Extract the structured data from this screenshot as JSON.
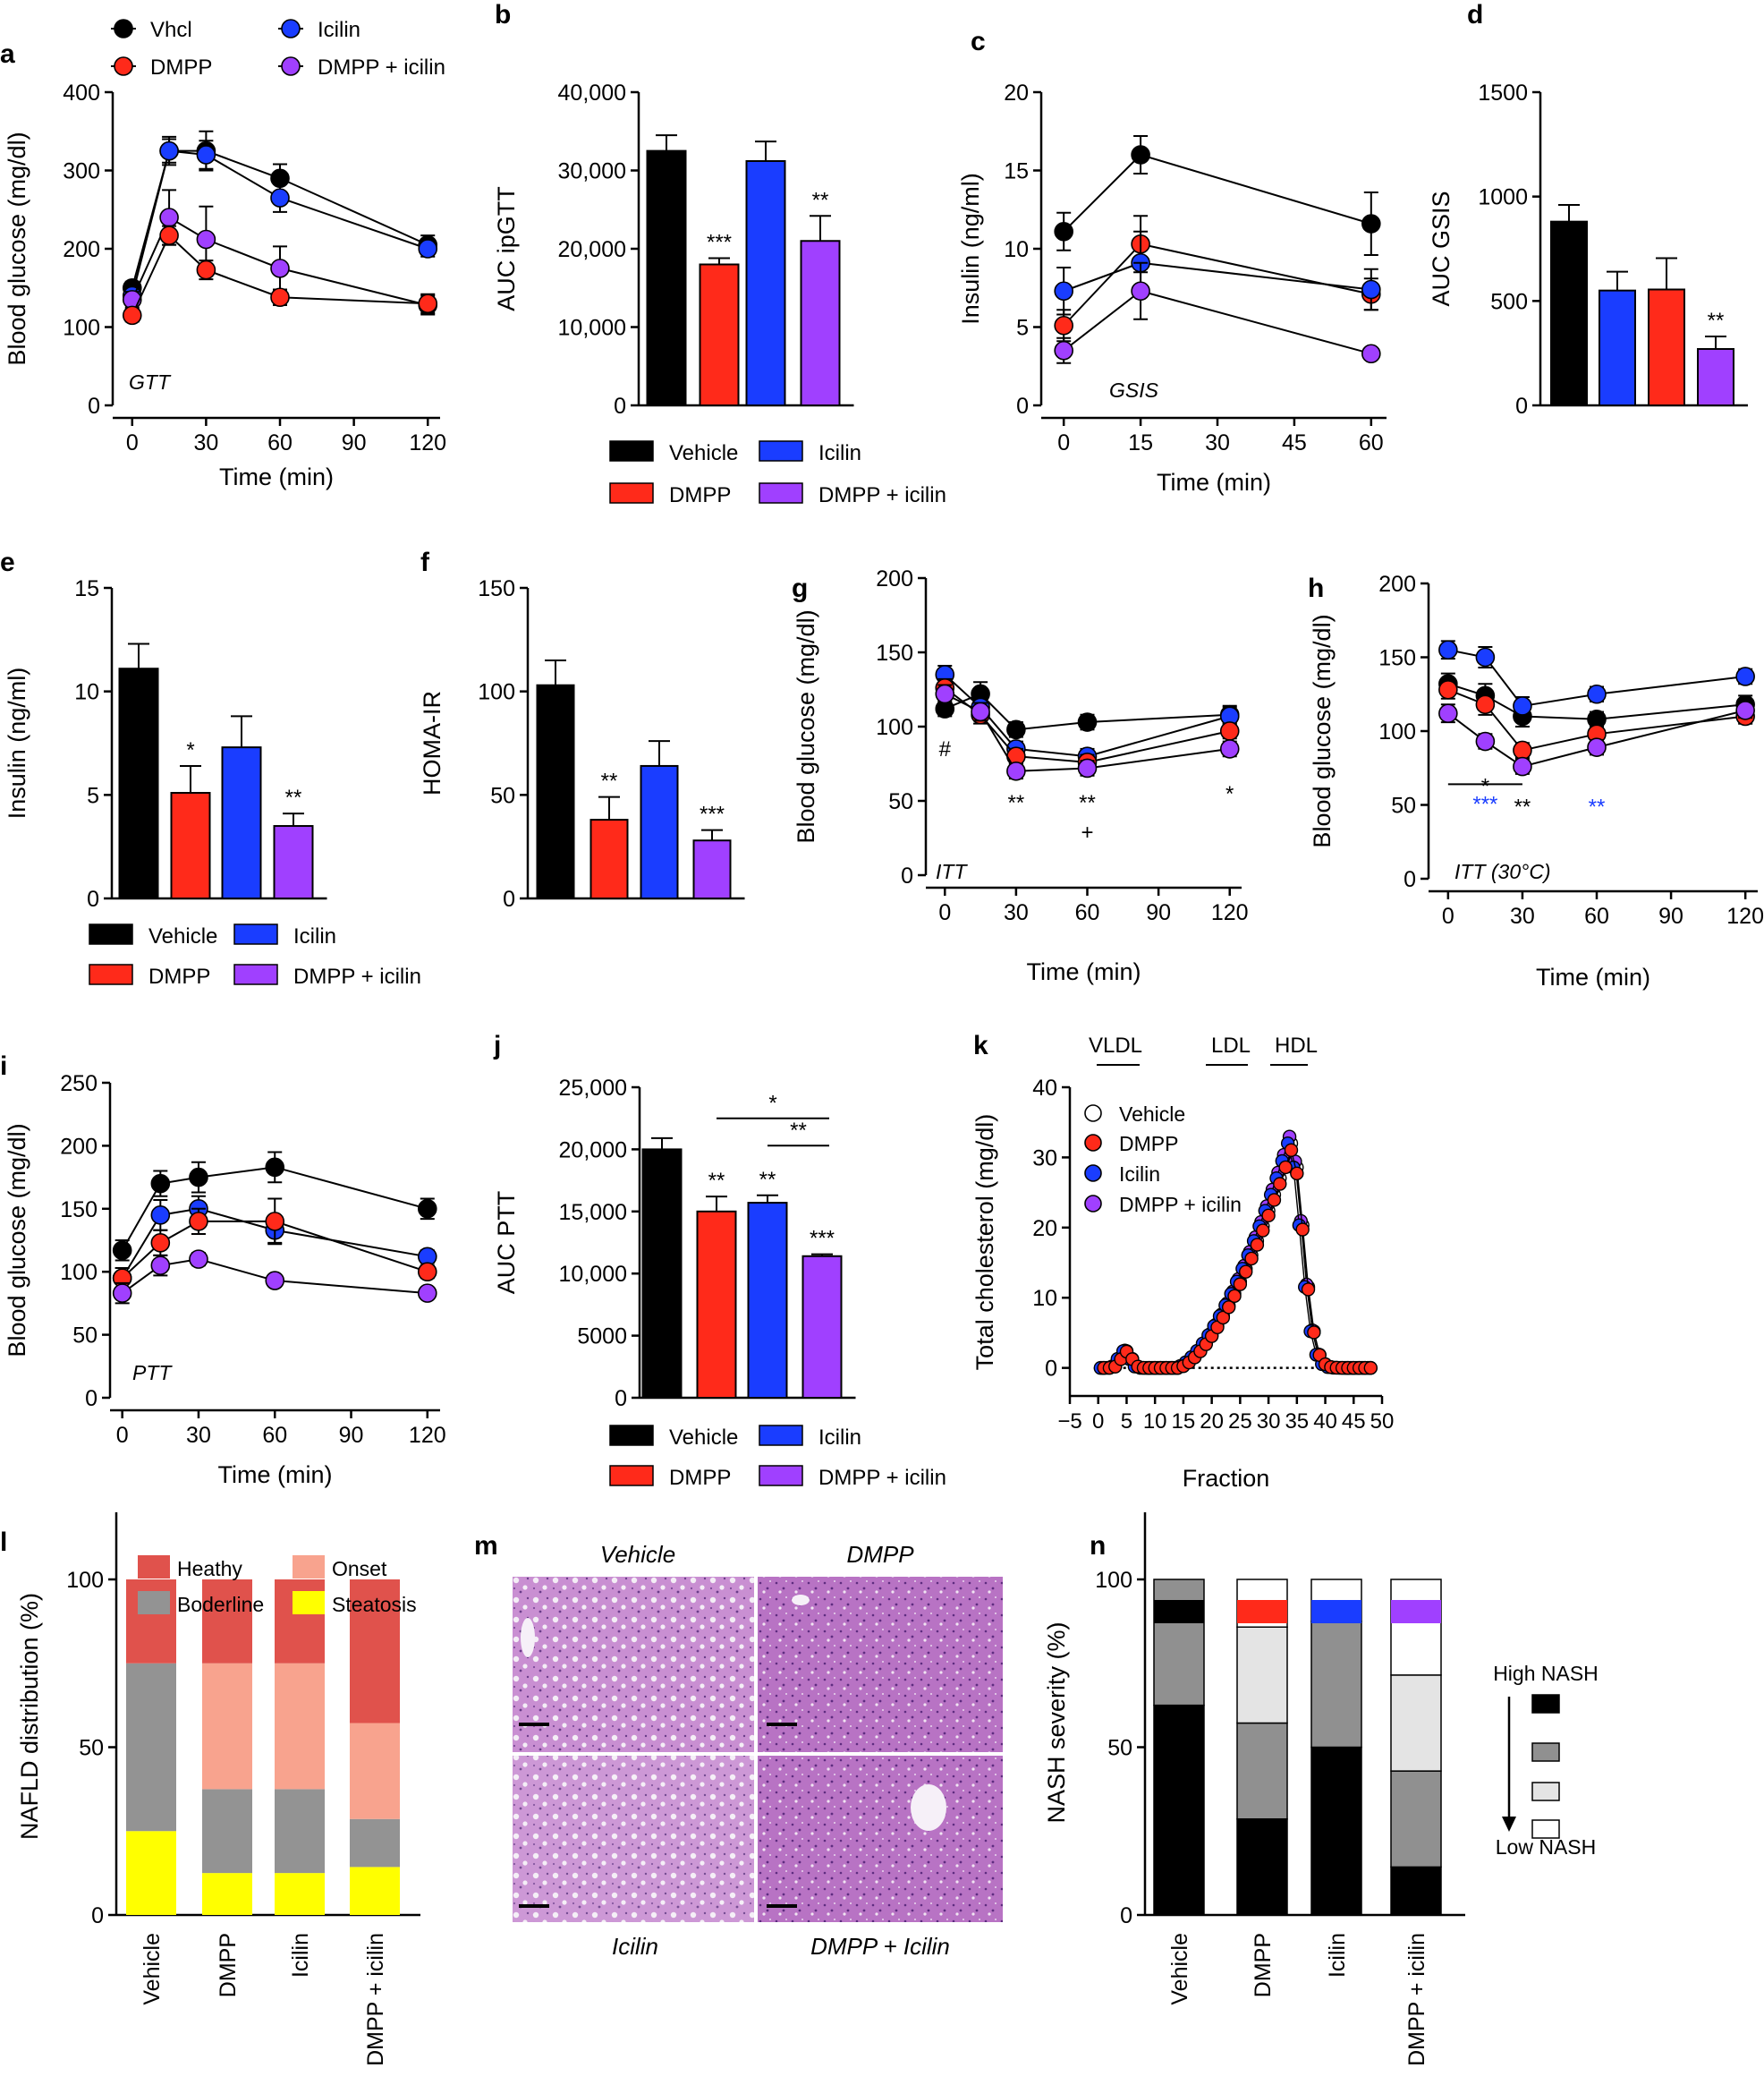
{
  "colors": {
    "vehicle": "#000000",
    "dmpp": "#ff2a1a",
    "icilin": "#1a3dff",
    "combo": "#a040ff",
    "grey": "#909090",
    "white": "#ffffff",
    "healthy": "#e0524c",
    "onset": "#f8a38e",
    "borderline": "#939393",
    "steatosis": "#ffff00",
    "blueStar": "#1a3dff",
    "lightgrey": "#e4e4e4"
  },
  "chart_data": [
    {
      "id": "a",
      "type": "line",
      "label": "a",
      "ylabel": "Blood glucose (mg/dl)",
      "xlabel": "Time (min)",
      "annotation": "GTT",
      "x": [
        0,
        15,
        30,
        60,
        120
      ],
      "xticks": [
        "0",
        "30",
        "60",
        "90",
        "120"
      ],
      "yticks": [
        "0",
        "100",
        "200",
        "300",
        "400"
      ],
      "ylim": [
        0,
        400
      ],
      "xlim": [
        -5,
        125
      ],
      "legend": [
        "Vhcl",
        "DMPP",
        "Icilin",
        "DMPP + icilin"
      ],
      "series": [
        {
          "name": "Vhcl",
          "color": "vehicle",
          "values": [
            150,
            325,
            325,
            290,
            205
          ],
          "err": [
            8,
            18,
            25,
            18,
            12
          ]
        },
        {
          "name": "Icilin",
          "color": "icilin",
          "values": [
            140,
            325,
            320,
            265,
            200
          ],
          "err": [
            8,
            15,
            18,
            18,
            10
          ]
        },
        {
          "name": "DMPP + icilin",
          "color": "combo",
          "values": [
            135,
            240,
            212,
            175,
            128
          ],
          "err": [
            10,
            35,
            42,
            28,
            12
          ]
        },
        {
          "name": "DMPP",
          "color": "dmpp",
          "values": [
            115,
            217,
            173,
            138,
            130
          ],
          "err": [
            8,
            12,
            12,
            10,
            12
          ]
        }
      ]
    },
    {
      "id": "b",
      "type": "bar",
      "label": "b",
      "ylabel": "AUC ipGTT",
      "categories": [
        "Vehicle",
        "DMPP",
        "Icilin",
        "DMPP + icilin"
      ],
      "values": [
        32500,
        18000,
        31200,
        21000
      ],
      "err": [
        2000,
        800,
        2500,
        3200
      ],
      "stars": [
        "",
        "***",
        "",
        "**"
      ],
      "ylim": [
        0,
        40000
      ],
      "yticks": [
        "0",
        "10,000",
        "20,000",
        "30,000",
        "40,000"
      ]
    },
    {
      "id": "c",
      "type": "line",
      "label": "c",
      "ylabel": "Insulin (ng/ml)",
      "xlabel": "Time (min)",
      "annotation": "GSIS",
      "x": [
        0,
        15,
        60
      ],
      "xticks": [
        "0",
        "15",
        "30",
        "45",
        "60"
      ],
      "yticks": [
        "0",
        "5",
        "10",
        "15",
        "20"
      ],
      "ylim": [
        0,
        20
      ],
      "xlim": [
        -3,
        63
      ],
      "series": [
        {
          "name": "Vehicle",
          "color": "vehicle",
          "values": [
            11.1,
            16.0,
            11.6
          ],
          "err": [
            1.2,
            1.2,
            2.0
          ]
        },
        {
          "name": "DMPP",
          "color": "dmpp",
          "values": [
            5.1,
            10.3,
            7.1
          ],
          "err": [
            1.0,
            1.8,
            1.0
          ]
        },
        {
          "name": "Icilin",
          "color": "icilin",
          "values": [
            7.3,
            9.1,
            7.4
          ],
          "err": [
            1.5,
            2.0,
            1.3
          ]
        },
        {
          "name": "DMPP + icilin",
          "color": "combo",
          "values": [
            3.5,
            7.3,
            3.3
          ],
          "err": [
            0.8,
            1.8,
            0.3
          ]
        }
      ]
    },
    {
      "id": "d",
      "type": "bar",
      "label": "d",
      "ylabel": "AUC GSIS",
      "categories": [
        "Vehicle",
        "Icilin",
        "DMPP",
        "DMPP + icilin"
      ],
      "values": [
        880,
        550,
        555,
        270
      ],
      "err": [
        80,
        90,
        150,
        60
      ],
      "stars": [
        "",
        "",
        "",
        "**"
      ],
      "ylim": [
        0,
        1500
      ],
      "yticks": [
        "0",
        "500",
        "1000",
        "1500"
      ]
    },
    {
      "id": "e",
      "type": "bar",
      "label": "e",
      "ylabel": "Insulin (ng/ml)",
      "categories": [
        "Vehicle",
        "DMPP",
        "Icilin",
        "DMPP + icilin"
      ],
      "values": [
        11.1,
        5.1,
        7.3,
        3.5
      ],
      "err": [
        1.2,
        1.3,
        1.5,
        0.6
      ],
      "stars": [
        "",
        "*",
        "",
        "**"
      ],
      "ylim": [
        0,
        15
      ],
      "yticks": [
        "0",
        "5",
        "10",
        "15"
      ]
    },
    {
      "id": "f",
      "type": "bar",
      "label": "f",
      "ylabel": "HOMA-IR",
      "categories": [
        "Vehicle",
        "DMPP",
        "Icilin",
        "DMPP + icilin"
      ],
      "values": [
        103,
        38,
        64,
        28
      ],
      "err": [
        12,
        11,
        12,
        5
      ],
      "stars": [
        "",
        "**",
        "",
        "***"
      ],
      "ylim": [
        0,
        150
      ],
      "yticks": [
        "0",
        "50",
        "100",
        "150"
      ]
    },
    {
      "id": "g",
      "type": "line",
      "label": "g",
      "ylabel": "Blood glucose (mg/dl)",
      "xlabel": "Time (min)",
      "annotation": "ITT",
      "x": [
        0,
        15,
        30,
        60,
        120
      ],
      "xticks": [
        "0",
        "30",
        "60",
        "90",
        "120"
      ],
      "yticks": [
        "0",
        "50",
        "100",
        "150",
        "200"
      ],
      "ylim": [
        0,
        200
      ],
      "xlim": [
        -5,
        125
      ],
      "series": [
        {
          "name": "Vehicle",
          "color": "vehicle",
          "values": [
            112,
            122,
            98,
            103,
            108
          ],
          "err": [
            5,
            8,
            5,
            5,
            6
          ]
        },
        {
          "name": "Icilin",
          "color": "icilin",
          "values": [
            135,
            113,
            85,
            80,
            107
          ],
          "err": [
            6,
            8,
            5,
            5,
            6
          ]
        },
        {
          "name": "DMPP",
          "color": "dmpp",
          "values": [
            126,
            108,
            80,
            76,
            97
          ],
          "err": [
            6,
            6,
            5,
            5,
            5
          ]
        },
        {
          "name": "DMPP + icilin",
          "color": "combo",
          "values": [
            122,
            110,
            70,
            72,
            85
          ],
          "err": [
            6,
            6,
            5,
            5,
            5
          ]
        }
      ],
      "marks": [
        {
          "x": 0,
          "y": 86,
          "t": "#"
        },
        {
          "x": 30,
          "y": 50,
          "t": "**"
        },
        {
          "x": 60,
          "y": 50,
          "t": "**"
        },
        {
          "x": 60,
          "y": 30,
          "t": "+"
        },
        {
          "x": 120,
          "y": 56,
          "t": "*"
        }
      ]
    },
    {
      "id": "h",
      "type": "line",
      "label": "h",
      "ylabel": "Blood glucose (mg/dl)",
      "xlabel": "Time (min)",
      "annotation": "ITT (30°C)",
      "x": [
        0,
        15,
        30,
        60,
        120
      ],
      "xticks": [
        "0",
        "30",
        "60",
        "90",
        "120"
      ],
      "yticks": [
        "0",
        "50",
        "100",
        "150",
        "200"
      ],
      "ylim": [
        0,
        200
      ],
      "xlim": [
        -5,
        125
      ],
      "series": [
        {
          "name": "Vehicle",
          "color": "vehicle",
          "values": [
            132,
            124,
            110,
            108,
            118
          ],
          "err": [
            7,
            8,
            7,
            5,
            6
          ]
        },
        {
          "name": "Icilin",
          "color": "icilin",
          "values": [
            155,
            150,
            117,
            125,
            137
          ],
          "err": [
            6,
            7,
            6,
            5,
            5
          ]
        },
        {
          "name": "DMPP",
          "color": "dmpp",
          "values": [
            128,
            118,
            87,
            98,
            110
          ],
          "err": [
            6,
            7,
            5,
            5,
            5
          ]
        },
        {
          "name": "DMPP + icilin",
          "color": "combo",
          "values": [
            112,
            93,
            76,
            89,
            114
          ],
          "err": [
            6,
            5,
            5,
            5,
            5
          ]
        }
      ],
      "marks": [
        {
          "x": 15,
          "y": 64,
          "t": "*"
        },
        {
          "x": 30,
          "y": 50,
          "t": "**"
        },
        {
          "x": 60,
          "y": 50,
          "t": "**",
          "blue": true
        }
      ],
      "bracket": {
        "x1": 0,
        "x2": 30,
        "y": 64,
        "t": "***"
      }
    },
    {
      "id": "i",
      "type": "line",
      "label": "i",
      "ylabel": "Blood glucose (mg/dl)",
      "xlabel": "Time (min)",
      "annotation": "PTT",
      "x": [
        0,
        15,
        30,
        60,
        120
      ],
      "xticks": [
        "0",
        "30",
        "60",
        "90",
        "120"
      ],
      "yticks": [
        "0",
        "50",
        "100",
        "150",
        "200",
        "250"
      ],
      "ylim": [
        0,
        250
      ],
      "xlim": [
        -2,
        125
      ],
      "series": [
        {
          "name": "Vehicle",
          "color": "vehicle",
          "values": [
            117,
            170,
            175,
            183,
            150
          ],
          "err": [
            8,
            10,
            12,
            12,
            8
          ]
        },
        {
          "name": "Icilin",
          "color": "icilin",
          "values": [
            95,
            145,
            150,
            133,
            112
          ],
          "err": [
            8,
            12,
            10,
            10,
            5
          ]
        },
        {
          "name": "DMPP",
          "color": "dmpp",
          "values": [
            95,
            123,
            140,
            140,
            100
          ],
          "err": [
            8,
            10,
            10,
            18,
            5
          ]
        },
        {
          "name": "DMPP + icilin",
          "color": "combo",
          "values": [
            83,
            105,
            110,
            93,
            83
          ],
          "err": [
            8,
            8,
            5,
            4,
            4
          ]
        }
      ]
    },
    {
      "id": "j",
      "type": "bar",
      "label": "j",
      "ylabel": "AUC PTT",
      "categories": [
        "Vehicle",
        "DMPP",
        "Icilin",
        "DMPP + icilin"
      ],
      "values": [
        20000,
        15000,
        15700,
        11400
      ],
      "err": [
        900,
        1200,
        600,
        150
      ],
      "stars": [
        "",
        "**",
        "**",
        "***"
      ],
      "ylim": [
        0,
        25000
      ],
      "yticks": [
        "0",
        "5000",
        "10,000",
        "15,000",
        "20,000",
        "25,000"
      ],
      "brackets": [
        {
          "from": 1,
          "to": 3,
          "y": 22500,
          "t": "*"
        },
        {
          "from": 2,
          "to": 3,
          "y": 20300,
          "t": "**"
        }
      ]
    },
    {
      "id": "k",
      "type": "scatter",
      "label": "k",
      "ylabel": "Total cholesterol (mg/dl)",
      "xlabel": "Fraction",
      "xticks": [
        "−5",
        "0",
        "5",
        "10",
        "15",
        "20",
        "25",
        "30",
        "35",
        "40",
        "45",
        "50"
      ],
      "yticks": [
        "0",
        "10",
        "20",
        "30",
        "40"
      ],
      "xlim": [
        -5,
        50
      ],
      "ylim": [
        -4,
        40
      ],
      "legend": [
        "Vehicle",
        "DMPP",
        "Icilin",
        "DMPP + icilin"
      ],
      "regions": [
        "VLDL",
        "LDL",
        "HDL"
      ]
    },
    {
      "id": "l",
      "type": "bar",
      "label": "l",
      "ylabel": "NAFLD distribution (%)",
      "categories": [
        "Vehicle",
        "DMPP",
        "Icilin",
        "DMPP + icilin"
      ],
      "legend": [
        "Heathy",
        "Onset",
        "Boderline",
        "Steatosis"
      ],
      "yticks": [
        "0",
        "50",
        "100"
      ],
      "ylim": [
        0,
        120
      ],
      "stacks": [
        [
          25,
          50,
          0,
          25
        ],
        [
          12.5,
          25,
          37.5,
          25
        ],
        [
          12.5,
          25,
          37.5,
          25
        ],
        [
          14.3,
          14.3,
          28.6,
          42.8
        ]
      ]
    },
    {
      "id": "n",
      "type": "bar",
      "label": "n",
      "ylabel": "NASH severity (%)",
      "categories": [
        "Vehicle",
        "DMPP",
        "Icilin",
        "DMPP + icilin"
      ],
      "yticks": [
        "0",
        "50",
        "100"
      ],
      "ylim": [
        0,
        120
      ],
      "stacks": [
        [
          62.5,
          37.5,
          0,
          0
        ],
        [
          28.6,
          28.6,
          28.6,
          14.2
        ],
        [
          50,
          37.5,
          0,
          12.5
        ],
        [
          14.3,
          28.6,
          28.6,
          28.5
        ]
      ],
      "scaleTop": "High NASH",
      "scaleBottom": "Low NASH"
    }
  ],
  "histology": {
    "label": "m",
    "captions": [
      "Vehicle",
      "DMPP",
      "Icilin",
      "DMPP + Icilin"
    ]
  }
}
